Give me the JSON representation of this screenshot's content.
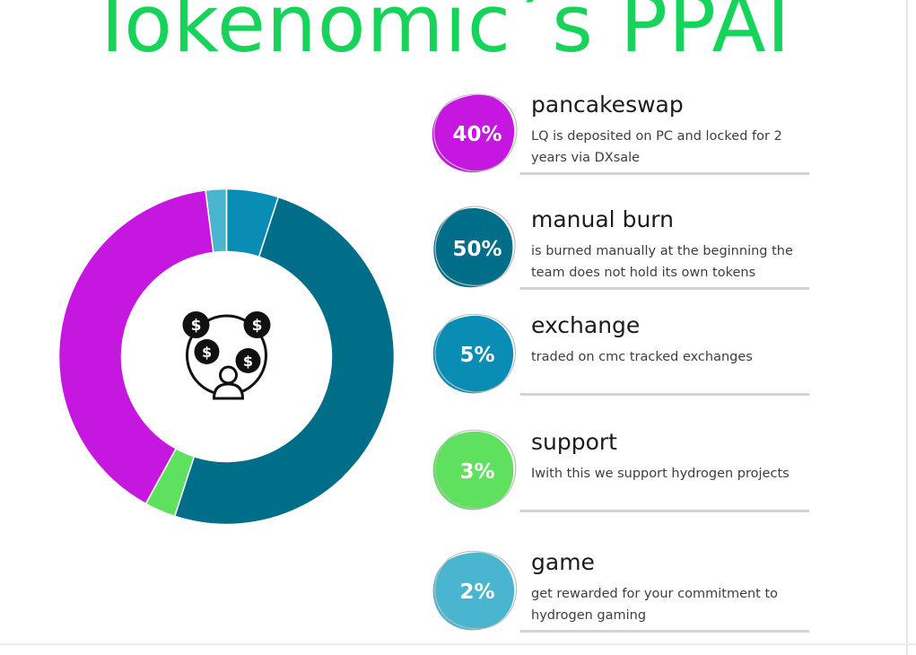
{
  "title": "Tokenomic´s PPAI",
  "colors": {
    "title": "#16d45a",
    "pancakeswap": "#c517e0",
    "manual_burn": "#006d89",
    "exchange": "#0a8db4",
    "support": "#5fe05f",
    "game": "#4ab5cf"
  },
  "center_icon": "investors-coins-icon",
  "chart_data": {
    "type": "pie",
    "donut": true,
    "labels": [
      "pancakeswap",
      "manual burn",
      "exchange",
      "support",
      "game"
    ],
    "values": [
      40,
      50,
      5,
      3,
      2
    ],
    "colors": [
      "#c517e0",
      "#006d89",
      "#0a8db4",
      "#5fe05f",
      "#4ab5cf"
    ]
  },
  "allocations": [
    {
      "percent": "40%",
      "title": "pancakeswap",
      "description": "LQ is deposited on PC and locked for 2 years via DXsale",
      "color": "#c517e0"
    },
    {
      "percent": "50%",
      "title": "manual burn",
      "description": "is burned manually at the beginning the team does not hold its own tokens",
      "color": "#006d89"
    },
    {
      "percent": "5%",
      "title": "exchange",
      "description": "traded on cmc tracked exchanges",
      "color": "#0a8db4"
    },
    {
      "percent": "3%",
      "title": "support",
      "description": "Iwith this we support hydrogen projects",
      "color": "#5fe05f"
    },
    {
      "percent": "2%",
      "title": "game",
      "description": "get rewarded for your commitment to hydrogen gaming",
      "color": "#4ab5cf"
    }
  ]
}
